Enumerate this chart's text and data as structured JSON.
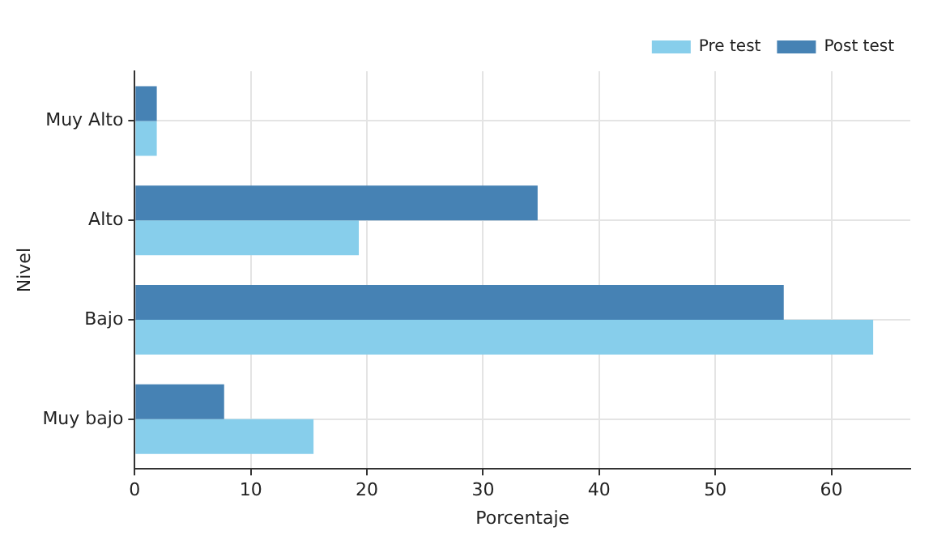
{
  "chart_data": {
    "type": "bar",
    "orientation": "horizontal",
    "xlabel": "Porcentaje",
    "ylabel": "Nivel",
    "categories": [
      "Muy Alto",
      "Alto",
      "Bajo",
      "Muy bajo"
    ],
    "series": [
      {
        "name": "Pre test",
        "color": "#87ceeb",
        "values": [
          1.9,
          19.3,
          63.6,
          15.4
        ]
      },
      {
        "name": "Post test",
        "color": "#4682b4",
        "values": [
          1.9,
          34.7,
          55.9,
          7.7
        ]
      }
    ],
    "xlim": [
      0,
      66.8
    ],
    "xticks": [
      0,
      10,
      20,
      30,
      40,
      50,
      60
    ],
    "grid": true,
    "legend": "top right"
  }
}
